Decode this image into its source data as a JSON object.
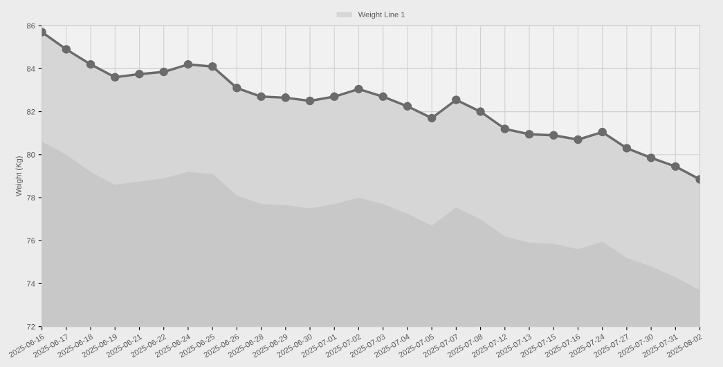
{
  "chart_data": {
    "type": "area",
    "ylabel": "Weight (Kg)",
    "categories": [
      "2025-06-16",
      "2025-06-17",
      "2025-06-18",
      "2025-06-19",
      "2025-06-21",
      "2025-06-22",
      "2025-06-24",
      "2025-06-25",
      "2025-06-26",
      "2025-06-28",
      "2025-06-29",
      "2025-06-30",
      "2025-07-01",
      "2025-07-02",
      "2025-07-03",
      "2025-07-04",
      "2025-07-05",
      "2025-07-07",
      "2025-07-08",
      "2025-07-12",
      "2025-07-13",
      "2025-07-15",
      "2025-07-16",
      "2025-07-24",
      "2025-07-27",
      "2025-07-30",
      "2025-07-31",
      "2025-08-02"
    ],
    "series": [
      {
        "name": "Weight Line 1",
        "marker": "circle",
        "color": "#d6d6d6",
        "values": [
          85.7,
          84.9,
          84.2,
          83.6,
          83.75,
          83.85,
          84.2,
          84.1,
          83.1,
          82.7,
          82.65,
          82.5,
          82.7,
          83.05,
          82.7,
          82.25,
          81.7,
          82.55,
          82.0,
          81.2,
          80.95,
          80.9,
          80.7,
          81.05,
          80.3,
          79.85,
          79.45,
          78.85
        ]
      },
      {
        "marker": "none",
        "color": "#c8c8c8",
        "values": [
          80.6,
          80.0,
          79.2,
          78.6,
          78.75,
          78.9,
          79.2,
          79.1,
          78.1,
          77.7,
          77.65,
          77.5,
          77.7,
          78.0,
          77.7,
          77.25,
          76.7,
          77.55,
          77.0,
          76.2,
          75.9,
          75.85,
          75.6,
          75.95,
          75.2,
          74.8,
          74.3,
          73.7
        ]
      }
    ],
    "ylim": [
      72,
      86
    ],
    "yticks": [
      72,
      74,
      76,
      78,
      80,
      82,
      84,
      86
    ],
    "grid": true,
    "legend": "top"
  }
}
